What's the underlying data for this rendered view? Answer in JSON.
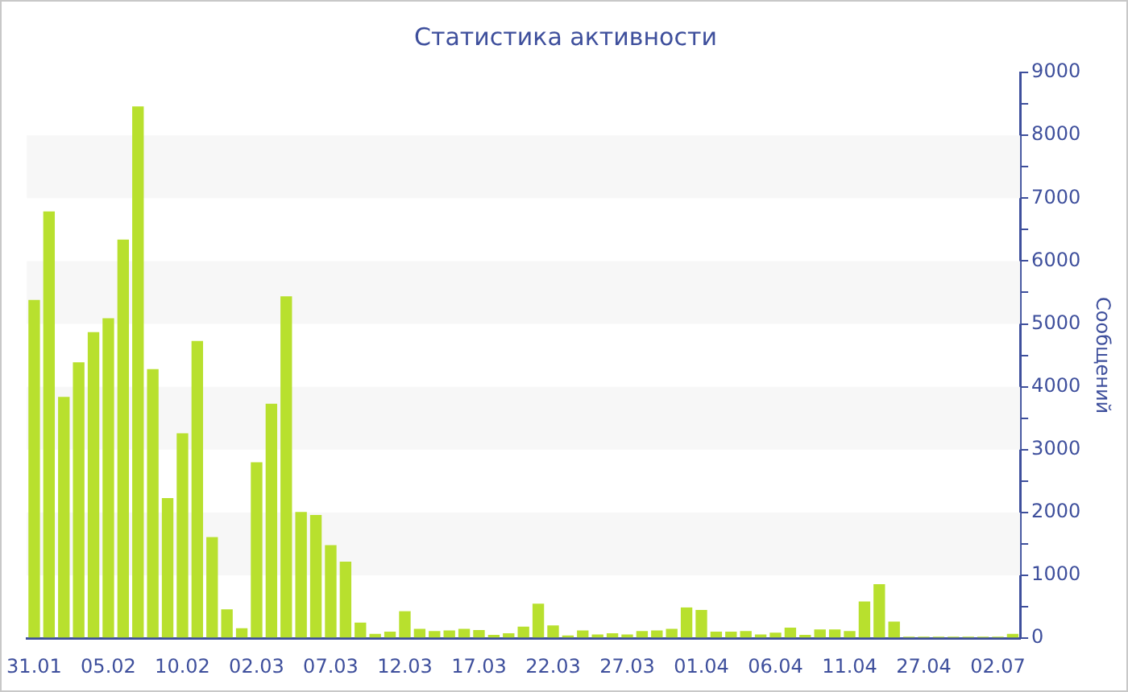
{
  "chart_data": {
    "type": "bar",
    "title": "Статистика активности",
    "ylabel": "Сообщений",
    "color": "#b8e02e",
    "categories": [
      "31.01",
      null,
      null,
      null,
      null,
      "05.02",
      null,
      null,
      null,
      null,
      "10.02",
      null,
      null,
      null,
      null,
      "02.03",
      null,
      null,
      null,
      null,
      "07.03",
      null,
      null,
      null,
      null,
      "12.03",
      null,
      null,
      null,
      null,
      "17.03",
      null,
      null,
      null,
      null,
      "22.03",
      null,
      null,
      null,
      null,
      "27.03",
      null,
      null,
      null,
      null,
      "01.04",
      null,
      null,
      null,
      null,
      "06.04",
      null,
      null,
      null,
      null,
      "11.04",
      null,
      null,
      null,
      null,
      "27.04",
      null,
      null,
      null,
      null,
      "02.07",
      null
    ],
    "values": [
      5380,
      6790,
      3840,
      4390,
      4870,
      5090,
      6340,
      8460,
      4280,
      2230,
      3260,
      4730,
      1610,
      460,
      160,
      2800,
      3730,
      5440,
      2010,
      1960,
      1480,
      1220,
      250,
      70,
      105,
      430,
      150,
      115,
      125,
      150,
      130,
      55,
      80,
      185,
      550,
      205,
      45,
      125,
      60,
      80,
      60,
      115,
      125,
      150,
      490,
      450,
      105,
      105,
      115,
      60,
      90,
      170,
      55,
      140,
      140,
      115,
      585,
      860,
      265,
      25,
      25,
      25,
      25,
      25,
      25,
      25,
      70
    ],
    "ylim": [
      0,
      9000
    ],
    "yticks": [
      0,
      {
        "value": 500,
        "label": null
      },
      1000,
      {
        "value": 1500,
        "label": null
      },
      2000,
      {
        "value": 2500,
        "label": null
      },
      3000,
      {
        "value": 3500,
        "label": null
      },
      4000,
      {
        "value": 4500,
        "label": null
      },
      5000,
      {
        "value": 5500,
        "label": null
      },
      6000,
      {
        "value": 6500,
        "label": null
      },
      7000,
      {
        "value": 7500,
        "label": null
      },
      8000,
      {
        "value": 8500,
        "label": null
      },
      9000
    ],
    "bands": [
      {
        "axis": "y",
        "from": 1000,
        "to": 2000,
        "color": "#f7f7f7"
      },
      {
        "axis": "y",
        "from": 3000,
        "to": 4000,
        "color": "#f7f7f7"
      },
      {
        "axis": "y",
        "from": 5000,
        "to": 6000,
        "color": "#f7f7f7"
      },
      {
        "axis": "y",
        "from": 7000,
        "to": 8000,
        "color": "#f7f7f7"
      }
    ]
  }
}
